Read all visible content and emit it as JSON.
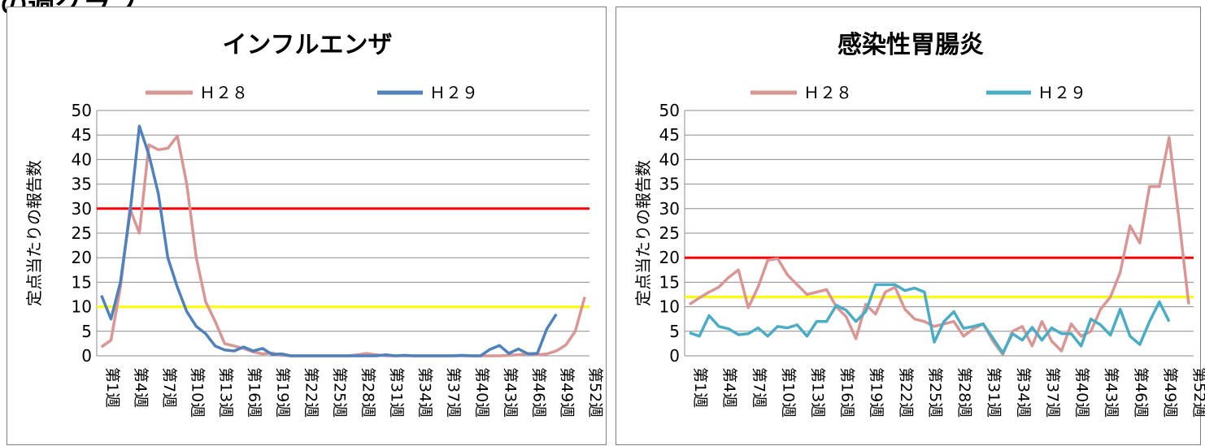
{
  "header": {
    "title": "の週グラフ"
  },
  "chart_data": [
    {
      "type": "line",
      "title": "インフルエンザ",
      "ylabel": "定点当たりの報告数",
      "ylim": [
        0,
        50
      ],
      "yticks": [
        0,
        5,
        10,
        15,
        20,
        25,
        30,
        35,
        40,
        45,
        50
      ],
      "xtick_labels": [
        "第1週",
        "第4週",
        "第7週",
        "第10週",
        "第13週",
        "第16週",
        "第19週",
        "第22週",
        "第25週",
        "第28週",
        "第31週",
        "第34週",
        "第37週",
        "第40週",
        "第43週",
        "第46週",
        "第49週",
        "第52週"
      ],
      "legend": [
        "Ｈ２８",
        "Ｈ２９"
      ],
      "reference_lines": [
        {
          "value": 30,
          "color": "#ff0000"
        },
        {
          "value": 10,
          "color": "#ffff00"
        }
      ],
      "series": [
        {
          "name": "Ｈ２８",
          "color": "#d99694",
          "values": [
            1.8,
            3.2,
            14,
            30,
            25,
            43,
            42,
            42.3,
            44.8,
            35,
            20,
            11,
            7,
            2.5,
            2,
            1.5,
            0.8,
            0.4,
            0.6,
            0.1,
            0,
            0,
            0,
            0,
            0,
            0,
            0,
            0.2,
            0.5,
            0.2,
            0,
            0,
            0,
            0,
            0,
            0,
            0,
            0,
            0,
            0,
            0,
            0,
            0,
            0.1,
            0.2,
            0.5,
            0.2,
            0.4,
            1,
            2.2,
            5,
            12
          ]
        },
        {
          "name": "Ｈ２９",
          "color": "#4f81bd",
          "values": [
            12.3,
            7.5,
            15,
            29,
            46.8,
            41,
            33,
            20,
            14,
            9,
            6,
            4.5,
            2,
            1.2,
            1,
            1.8,
            1,
            1.5,
            0.3,
            0.4,
            0,
            0,
            0,
            0,
            0,
            0,
            0,
            0,
            0,
            0,
            0.2,
            0,
            0.1,
            0,
            0,
            0,
            0,
            0,
            0.1,
            0,
            0,
            1.3,
            2.1,
            0.5,
            1.4,
            0.4,
            0.5,
            5.5,
            8.5
          ]
        }
      ]
    },
    {
      "type": "line",
      "title": "感染性胃腸炎",
      "ylabel": "定点当たりの報告数",
      "ylim": [
        0,
        50
      ],
      "yticks": [
        0,
        5,
        10,
        15,
        20,
        25,
        30,
        35,
        40,
        45,
        50
      ],
      "xtick_labels": [
        "第1週",
        "第4週",
        "第7週",
        "第10週",
        "第13週",
        "第16週",
        "第19週",
        "第22週",
        "第25週",
        "第28週",
        "第31週",
        "第34週",
        "第37週",
        "第40週",
        "第43週",
        "第46週",
        "第49週",
        "第52週"
      ],
      "legend": [
        "Ｈ２８",
        "Ｈ２９"
      ],
      "reference_lines": [
        {
          "value": 20,
          "color": "#ff0000"
        },
        {
          "value": 12,
          "color": "#ffff00"
        }
      ],
      "series": [
        {
          "name": "Ｈ２８",
          "color": "#d99694",
          "values": [
            10.5,
            11.8,
            13,
            14,
            16,
            17.5,
            9.8,
            14,
            19.5,
            19.8,
            16.5,
            14.5,
            12.5,
            13,
            13.5,
            10,
            8,
            3.5,
            10.5,
            8.5,
            13,
            14,
            9.5,
            7.5,
            7,
            6,
            6.5,
            7,
            4,
            5.5,
            6.5,
            3,
            0.3,
            5,
            6,
            2,
            7,
            3,
            1,
            6.5,
            4,
            5,
            9.5,
            12,
            17,
            26.5,
            23,
            34.5,
            34.5,
            44.5,
            28,
            10.5
          ]
        },
        {
          "name": "Ｈ２９",
          "color": "#4bacc6",
          "values": [
            4.7,
            4,
            8.2,
            6,
            5.5,
            4.3,
            4.5,
            5.7,
            4,
            6,
            5.7,
            6.3,
            4,
            7,
            7,
            10.3,
            9.3,
            7,
            9,
            14.5,
            14.5,
            14.5,
            13.3,
            13.8,
            13,
            2.8,
            7,
            9,
            5.6,
            6,
            6.5,
            3.6,
            0.6,
            4.5,
            3.2,
            5.8,
            3.2,
            5.7,
            4.5,
            4.5,
            2,
            7.5,
            6.3,
            4.2,
            9.5,
            4,
            2.3,
            7,
            11,
            7
          ]
        }
      ]
    }
  ]
}
